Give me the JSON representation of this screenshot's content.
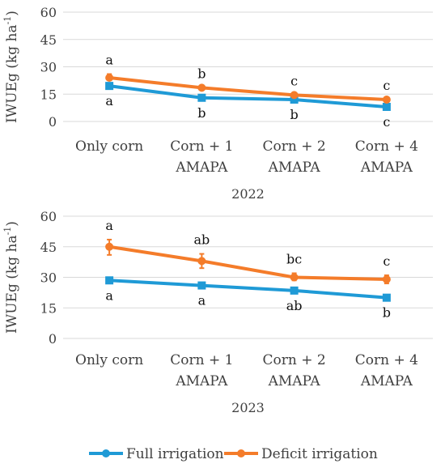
{
  "colors": {
    "full": "#1f9ad6",
    "deficit": "#f47c2a",
    "grid": "#d9d9d9"
  },
  "legend": {
    "full": "Full irrigation",
    "deficit": "Deficit irrigation",
    "placement": "bottom"
  },
  "chart_data": [
    {
      "type": "line",
      "title": "2022",
      "ylabel": "IWUEg (kg ha",
      "ylabel_sup": "-1",
      "ylabel_close": ")",
      "ylim": [
        0,
        60
      ],
      "yticks": [
        "0",
        "15",
        "30",
        "45",
        "60"
      ],
      "categories": [
        {
          "line1": "Only corn",
          "line2": ""
        },
        {
          "line1": "Corn + 1",
          "line2": "AMAPA"
        },
        {
          "line1": "Corn + 2",
          "line2": "AMAPA"
        },
        {
          "line1": "Corn + 4",
          "line2": "AMAPA"
        }
      ],
      "series": [
        {
          "name": "Full irrigation",
          "key": "full",
          "values": [
            19.5,
            13.0,
            12.0,
            8.0
          ],
          "letters": [
            "a",
            "b",
            "b",
            "c"
          ],
          "err_hi": [
            0,
            0,
            0,
            0
          ],
          "err_lo": [
            0,
            0,
            0,
            0
          ]
        },
        {
          "name": "Deficit irrigation",
          "key": "deficit",
          "values": [
            24.0,
            18.5,
            14.5,
            12.0
          ],
          "letters": [
            "a",
            "b",
            "c",
            "c"
          ],
          "err_hi": [
            2.0,
            0,
            0,
            0
          ],
          "err_lo": [
            0,
            0,
            0,
            0
          ]
        }
      ]
    },
    {
      "type": "line",
      "title": "2023",
      "ylabel": "IWUEg (kg ha",
      "ylabel_sup": "-1",
      "ylabel_close": ")",
      "ylim": [
        0,
        60
      ],
      "yticks": [
        "0",
        "15",
        "30",
        "45",
        "60"
      ],
      "categories": [
        {
          "line1": "Only corn",
          "line2": ""
        },
        {
          "line1": "Corn + 1",
          "line2": "AMAPA"
        },
        {
          "line1": "Corn + 2",
          "line2": "AMAPA"
        },
        {
          "line1": "Corn + 4",
          "line2": "AMAPA"
        }
      ],
      "series": [
        {
          "name": "Full irrigation",
          "key": "full",
          "values": [
            28.5,
            26.0,
            23.5,
            20.0
          ],
          "letters": [
            "a",
            "a",
            "ab",
            "b"
          ],
          "err_hi": [
            0,
            0,
            0,
            0
          ],
          "err_lo": [
            0,
            0,
            0,
            0
          ]
        },
        {
          "name": "Deficit irrigation",
          "key": "deficit",
          "values": [
            45.0,
            38.0,
            30.0,
            29.0
          ],
          "letters": [
            "a",
            "ab",
            "bc",
            "c"
          ],
          "err_hi": [
            3.5,
            3.5,
            2.0,
            2.0
          ],
          "err_lo": [
            4.0,
            3.5,
            1.5,
            2.0
          ]
        }
      ]
    }
  ]
}
